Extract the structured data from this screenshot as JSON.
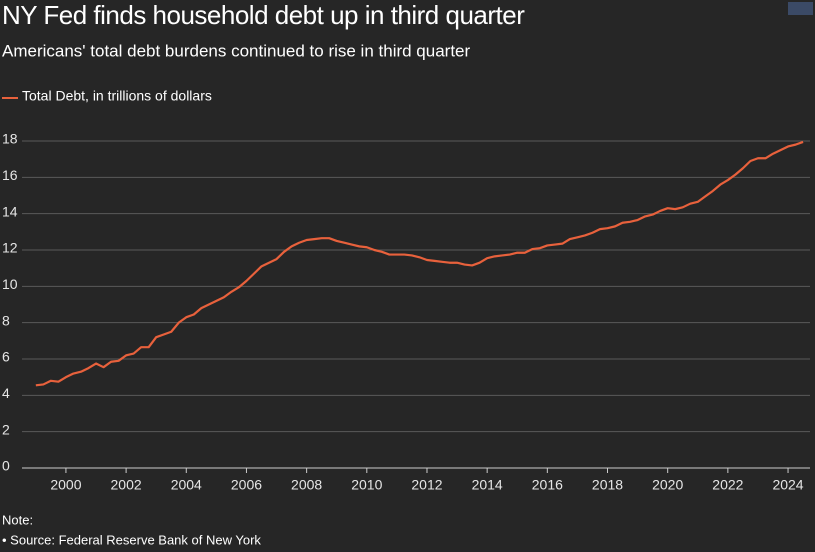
{
  "chart_data": {
    "type": "line",
    "title": "NY Fed finds household debt up in third quarter",
    "subtitle": "Americans' total debt burdens continued to rise in third quarter",
    "note": "Note:",
    "source": "• Source: Federal Reserve Bank of New York",
    "x": [
      1999,
      1999.25,
      1999.5,
      1999.75,
      2000,
      2000.25,
      2000.5,
      2000.75,
      2001,
      2001.25,
      2001.5,
      2001.75,
      2002,
      2002.25,
      2002.5,
      2002.75,
      2003,
      2003.25,
      2003.5,
      2003.75,
      2004,
      2004.25,
      2004.5,
      2004.75,
      2005,
      2005.25,
      2005.5,
      2005.75,
      2006,
      2006.25,
      2006.5,
      2006.75,
      2007,
      2007.25,
      2007.5,
      2007.75,
      2008,
      2008.25,
      2008.5,
      2008.75,
      2009,
      2009.25,
      2009.5,
      2009.75,
      2010,
      2010.25,
      2010.5,
      2010.75,
      2011,
      2011.25,
      2011.5,
      2011.75,
      2012,
      2012.25,
      2012.5,
      2012.75,
      2013,
      2013.25,
      2013.5,
      2013.75,
      2014,
      2014.25,
      2014.5,
      2014.75,
      2015,
      2015.25,
      2015.5,
      2015.75,
      2016,
      2016.25,
      2016.5,
      2016.75,
      2017,
      2017.25,
      2017.5,
      2017.75,
      2018,
      2018.25,
      2018.5,
      2018.75,
      2019,
      2019.25,
      2019.5,
      2019.75,
      2020,
      2020.25,
      2020.5,
      2020.75,
      2021,
      2021.25,
      2021.5,
      2021.75,
      2022,
      2022.25,
      2022.5,
      2022.75,
      2023,
      2023.25,
      2023.5,
      2023.75,
      2024,
      2024.25,
      2024.5
    ],
    "series": [
      {
        "name": "Total Debt, in trillions of dollars",
        "color": "#e8613c",
        "values": [
          4.55,
          4.6,
          4.8,
          4.75,
          5.0,
          5.2,
          5.3,
          5.5,
          5.75,
          5.55,
          5.85,
          5.9,
          6.2,
          6.3,
          6.65,
          6.65,
          7.2,
          7.35,
          7.5,
          8.0,
          8.3,
          8.45,
          8.8,
          9.0,
          9.2,
          9.4,
          9.7,
          9.95,
          10.3,
          10.7,
          11.1,
          11.3,
          11.5,
          11.9,
          12.2,
          12.4,
          12.55,
          12.6,
          12.65,
          12.65,
          12.5,
          12.4,
          12.3,
          12.2,
          12.15,
          12.0,
          11.9,
          11.75,
          11.75,
          11.75,
          11.7,
          11.6,
          11.45,
          11.4,
          11.35,
          11.3,
          11.3,
          11.2,
          11.15,
          11.3,
          11.55,
          11.65,
          11.7,
          11.75,
          11.85,
          11.85,
          12.05,
          12.1,
          12.25,
          12.3,
          12.35,
          12.6,
          12.7,
          12.8,
          12.95,
          13.15,
          13.2,
          13.3,
          13.5,
          13.55,
          13.65,
          13.85,
          13.95,
          14.15,
          14.3,
          14.25,
          14.35,
          14.55,
          14.65,
          14.95,
          15.25,
          15.6,
          15.85,
          16.15,
          16.5,
          16.9,
          17.05,
          17.05,
          17.3,
          17.5,
          17.7,
          17.8,
          17.95
        ]
      }
    ],
    "xlim": [
      1998.54,
      2024.73
    ],
    "xticks": [
      2000,
      2002,
      2004,
      2006,
      2008,
      2010,
      2012,
      2014,
      2016,
      2018,
      2020,
      2022,
      2024
    ],
    "ylim": [
      0,
      18
    ],
    "yticks": [
      0,
      2,
      4,
      6,
      8,
      10,
      12,
      14,
      16,
      18
    ],
    "grid": true,
    "legend": "top-left"
  }
}
